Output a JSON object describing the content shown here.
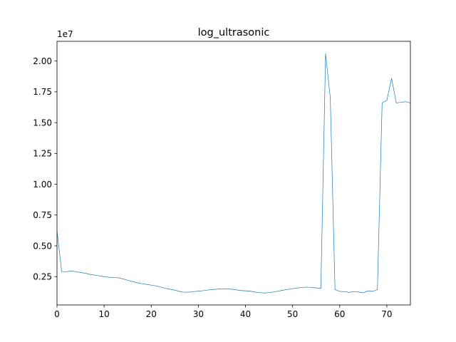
{
  "chart_data": {
    "type": "line",
    "title": "log_ultrasonic",
    "xlabel": "",
    "ylabel": "",
    "y_offset_label": "1e7",
    "xlim": [
      0,
      75
    ],
    "ylim": [
      0.02,
      2.16
    ],
    "x_ticks": [
      0,
      10,
      20,
      30,
      40,
      50,
      60,
      70
    ],
    "y_ticks": [
      0.25,
      0.5,
      0.75,
      1.0,
      1.25,
      1.5,
      1.75,
      2.0
    ],
    "y_tick_labels": [
      "0.25",
      "0.50",
      "0.75",
      "1.00",
      "1.25",
      "1.50",
      "1.75",
      "2.00"
    ],
    "grid": false,
    "legend": "none",
    "series": [
      {
        "color": "#1f77b4",
        "x": [
          0,
          1,
          2,
          3,
          4,
          5,
          6,
          7,
          8,
          9,
          10,
          11,
          12,
          13,
          14,
          15,
          16,
          17,
          18,
          19,
          20,
          21,
          22,
          23,
          24,
          25,
          26,
          27,
          28,
          29,
          30,
          31,
          32,
          33,
          34,
          35,
          36,
          37,
          38,
          39,
          40,
          41,
          42,
          43,
          44,
          45,
          46,
          47,
          48,
          49,
          50,
          51,
          52,
          53,
          54,
          55,
          56,
          57,
          58,
          59,
          60,
          61,
          62,
          63,
          64,
          65,
          66,
          67,
          68,
          69,
          70,
          71,
          72,
          73,
          74,
          75
        ],
        "y": [
          0.62,
          0.29,
          0.29,
          0.296,
          0.29,
          0.283,
          0.278,
          0.268,
          0.262,
          0.256,
          0.25,
          0.245,
          0.243,
          0.24,
          0.232,
          0.22,
          0.21,
          0.2,
          0.193,
          0.187,
          0.181,
          0.175,
          0.165,
          0.155,
          0.148,
          0.14,
          0.13,
          0.123,
          0.124,
          0.128,
          0.132,
          0.136,
          0.141,
          0.145,
          0.148,
          0.152,
          0.15,
          0.148,
          0.143,
          0.137,
          0.135,
          0.132,
          0.125,
          0.12,
          0.117,
          0.12,
          0.126,
          0.132,
          0.14,
          0.146,
          0.152,
          0.158,
          0.162,
          0.165,
          0.162,
          0.158,
          0.155,
          2.06,
          1.7,
          0.145,
          0.13,
          0.128,
          0.122,
          0.128,
          0.125,
          0.118,
          0.135,
          0.13,
          0.145,
          1.66,
          1.68,
          1.86,
          1.66,
          1.665,
          1.67,
          1.66
        ]
      }
    ]
  }
}
